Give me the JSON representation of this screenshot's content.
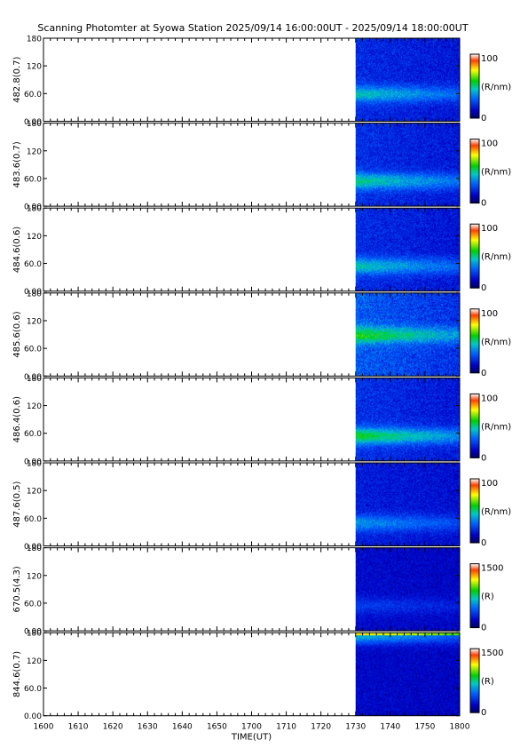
{
  "title": "Scanning Photomter at Syowa Station 2025/09/14 16:00:00UT - 2025/09/14 18:00:00UT",
  "chart_data": {
    "type": "heatmap",
    "xlabel": "TIME(UT)",
    "x_range": [
      "1600",
      "1800"
    ],
    "x_ticks": [
      "1600",
      "1610",
      "1620",
      "1630",
      "1640",
      "1650",
      "1700",
      "1710",
      "1720",
      "1730",
      "1740",
      "1750",
      "1800"
    ],
    "y_range": [
      0,
      180
    ],
    "y_ticks": [
      "0.00",
      "60.0",
      "120",
      "180"
    ],
    "data_start": "1730",
    "panels": [
      {
        "ylabel": "482.8(0.7)",
        "cbar_max": "100",
        "cbar_min": "0",
        "unit": "(R/nm)",
        "intensity": 0.3,
        "band_y": 60,
        "band_strength": 0.25
      },
      {
        "ylabel": "483.6(0.7)",
        "cbar_max": "100",
        "cbar_min": "0",
        "unit": "(R/nm)",
        "intensity": 0.32,
        "band_y": 55,
        "band_strength": 0.28
      },
      {
        "ylabel": "484.6(0.6)",
        "cbar_max": "100",
        "cbar_min": "0",
        "unit": "(R/nm)",
        "intensity": 0.3,
        "band_y": 55,
        "band_strength": 0.25
      },
      {
        "ylabel": "485.6(0.6)",
        "cbar_max": "100",
        "cbar_min": "0",
        "unit": "(R/nm)",
        "intensity": 0.55,
        "band_y": 90,
        "band_strength": 0.3
      },
      {
        "ylabel": "486.4(0.6)",
        "cbar_max": "100",
        "cbar_min": "0",
        "unit": "(R/nm)",
        "intensity": 0.33,
        "band_y": 55,
        "band_strength": 0.35
      },
      {
        "ylabel": "487.6(0.5)",
        "cbar_max": "100",
        "cbar_min": "0",
        "unit": "(R/nm)",
        "intensity": 0.22,
        "band_y": 50,
        "band_strength": 0.2
      },
      {
        "ylabel": "670.5(4.3)",
        "cbar_max": "1500",
        "cbar_min": "0",
        "unit": "(R)",
        "intensity": 0.1,
        "band_y": 55,
        "band_strength": 0.1
      },
      {
        "ylabel": "844.6(0.7)",
        "cbar_max": "1500",
        "cbar_min": "0",
        "unit": "(R)",
        "intensity": 0.08,
        "band_y": 175,
        "band_strength": 0.3
      }
    ]
  }
}
